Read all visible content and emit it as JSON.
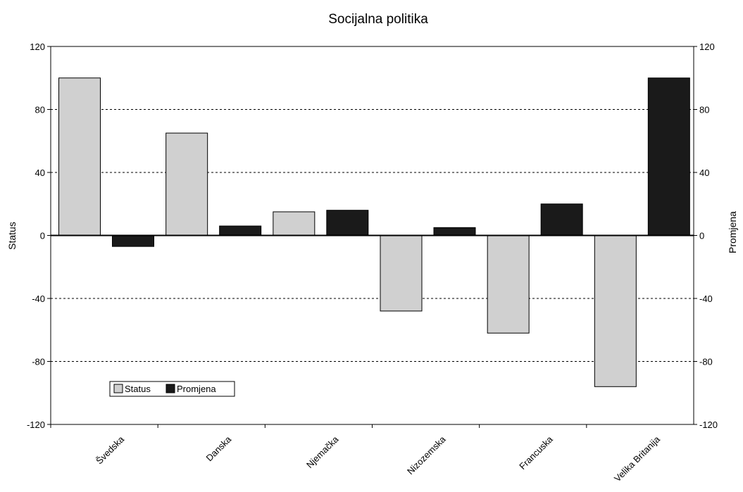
{
  "chart_data": {
    "type": "bar",
    "title": "Socijalna politika",
    "ylabel": "Status",
    "y2label": "Promjena",
    "categories": [
      "Švedska",
      "Danska",
      "Njemačka",
      "Nizozemska",
      "Francuska",
      "Velika Britanija"
    ],
    "series": [
      {
        "name": "Status",
        "values": [
          100,
          65,
          15,
          -48,
          -62,
          -96
        ],
        "color": "#d0d0d0",
        "axis": "left"
      },
      {
        "name": "Promjena",
        "values": [
          -7,
          6,
          16,
          5,
          20,
          100
        ],
        "color": "#1a1a1a",
        "axis": "right"
      }
    ],
    "ylim": [
      -120,
      120
    ],
    "y2lim": [
      -120,
      120
    ],
    "yticks": [
      -120,
      -80,
      -40,
      0,
      40,
      80,
      120
    ],
    "grid": "dashed horizontal",
    "legend": "bottom-left"
  }
}
